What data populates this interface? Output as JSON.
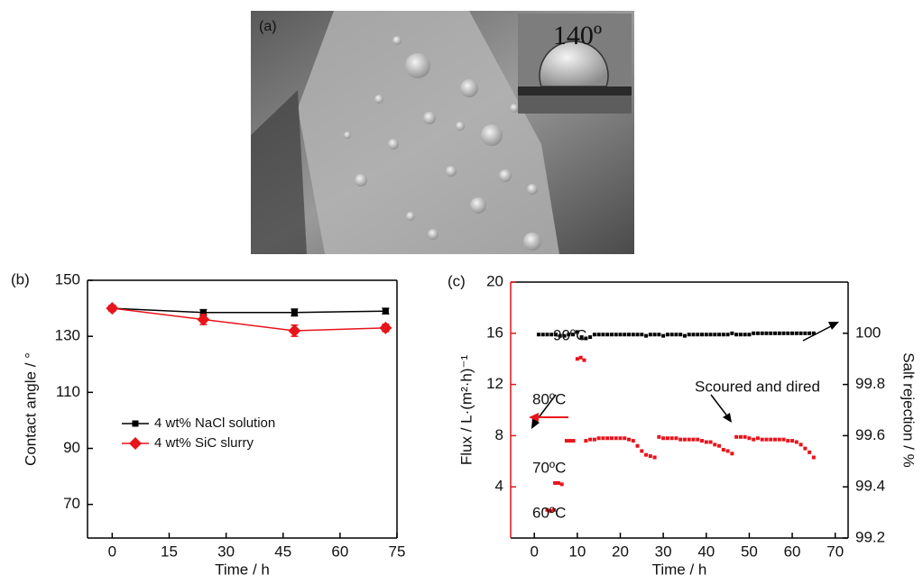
{
  "panel_a": {
    "label": "(a)",
    "inset_label": "140º"
  },
  "chart_data": [
    {
      "type": "line",
      "panel_label": "(b)",
      "x_label": "Time / h",
      "y_label": "Contact angle / °",
      "xlim": [
        -6.5,
        75
      ],
      "xticks": [
        0,
        15,
        30,
        45,
        60,
        75
      ],
      "ylim": [
        58,
        150
      ],
      "yticks": [
        70,
        90,
        110,
        130,
        150
      ],
      "legend": "lower-left",
      "series": [
        {
          "name": "4 wt% NaCl solution",
          "color": "#000000",
          "marker": "square",
          "x": [
            0,
            24,
            48,
            72
          ],
          "values": [
            140,
            138.5,
            138.5,
            139
          ],
          "errors": [
            1,
            1,
            1.2,
            1
          ]
        },
        {
          "name": "4 wt% SiC slurry",
          "color": "#e8141b",
          "marker": "diamond",
          "x": [
            0,
            24,
            48,
            72
          ],
          "values": [
            140,
            136,
            132,
            133
          ],
          "errors": [
            1,
            1.8,
            2,
            1.3
          ]
        }
      ]
    },
    {
      "type": "scatter",
      "panel_label": "(c)",
      "x_label": "Time / h",
      "y_label": "Flux / L·(m²·h)⁻¹",
      "y2_label": "Salt rejection / %",
      "xlim": [
        -5.5,
        73
      ],
      "xticks": [
        0,
        10,
        20,
        30,
        40,
        50,
        60,
        70
      ],
      "ylim": [
        0,
        20
      ],
      "yticks": [
        4,
        8,
        12,
        16,
        20
      ],
      "y_color": "#e8141b",
      "y2lim": [
        99.2,
        100.2
      ],
      "y2ticks": [
        99.2,
        99.4,
        99.6,
        99.8,
        100
      ],
      "annotations": [
        "90ºC",
        "80ºC",
        "70ºC",
        "60ºC",
        "Scoured and dired"
      ],
      "series": [
        {
          "color": "#000000",
          "axis": "y2",
          "marker": "square",
          "x": [
            1,
            2,
            3,
            4,
            5,
            6,
            7,
            8,
            9,
            10,
            11,
            12,
            13,
            14,
            15,
            16,
            17,
            18,
            19,
            20,
            21,
            22,
            23,
            24,
            25,
            26,
            27,
            28,
            29,
            30,
            31,
            32,
            33,
            34,
            35,
            36,
            37,
            38,
            39,
            40,
            41,
            42,
            43,
            44,
            45,
            46,
            47,
            48,
            49,
            50,
            51,
            52,
            53,
            54,
            55,
            56,
            57,
            58,
            59,
            60,
            61,
            62,
            63,
            64,
            65
          ],
          "values": [
            99.995,
            99.995,
            99.995,
            99.995,
            99.995,
            99.99,
            99.99,
            99.995,
            99.995,
            100.005,
            99.985,
            99.98,
            99.985,
            99.995,
            99.995,
            99.995,
            99.995,
            99.995,
            99.995,
            99.995,
            99.995,
            99.995,
            99.995,
            99.995,
            99.995,
            99.99,
            99.995,
            99.995,
            99.995,
            99.99,
            99.995,
            99.995,
            99.995,
            99.995,
            99.99,
            99.995,
            99.995,
            99.995,
            99.995,
            99.995,
            99.995,
            99.995,
            99.995,
            99.995,
            99.995,
            100,
            99.995,
            99.995,
            99.995,
            99.995,
            100,
            100,
            100,
            100,
            100,
            100,
            100,
            100,
            100,
            100,
            100,
            100,
            100,
            100,
            100
          ]
        },
        {
          "color": "#e8141b",
          "axis": "y",
          "marker": "square",
          "x": [
            3,
            3.8,
            4.6,
            4.8,
            5.6,
            6.4,
            7.5,
            8.3,
            9.1,
            10,
            10.8,
            11.6,
            12,
            13,
            14,
            15,
            16,
            17,
            18,
            19,
            20,
            21,
            22,
            23,
            24,
            25,
            26,
            27,
            28,
            29,
            30,
            31,
            32,
            33,
            34,
            35,
            36,
            37,
            38,
            39,
            40,
            41,
            42,
            43,
            44,
            45,
            46,
            47,
            48,
            49,
            50,
            51,
            52,
            53,
            54,
            55,
            56,
            57,
            58,
            59,
            60,
            61,
            62,
            63,
            64,
            65
          ],
          "values": [
            2.2,
            2.1,
            2.2,
            4.3,
            4.3,
            4.2,
            7.6,
            7.6,
            7.6,
            14.0,
            14.1,
            13.9,
            7.6,
            7.7,
            7.7,
            7.8,
            7.8,
            7.8,
            7.8,
            7.8,
            7.8,
            7.8,
            7.7,
            7.6,
            7.2,
            6.8,
            6.5,
            6.4,
            6.3,
            7.9,
            7.8,
            7.8,
            7.8,
            7.8,
            7.7,
            7.7,
            7.7,
            7.7,
            7.7,
            7.6,
            7.5,
            7.5,
            7.3,
            7.2,
            6.9,
            6.8,
            6.6,
            7.9,
            7.9,
            7.9,
            7.8,
            7.7,
            7.8,
            7.7,
            7.7,
            7.7,
            7.7,
            7.7,
            7.7,
            7.6,
            7.6,
            7.5,
            7.3,
            7.0,
            6.7,
            6.3
          ]
        }
      ]
    }
  ]
}
